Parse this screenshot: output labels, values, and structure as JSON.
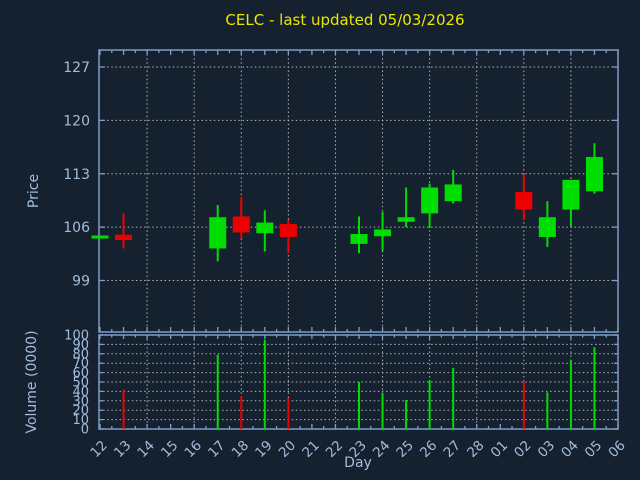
{
  "title": "CELC - last updated 05/03/2026",
  "colors": {
    "background": "#15212f",
    "border": "#7e9ec8",
    "grid": "#aab4be",
    "labels": "#a4bcdc",
    "title": "#e8e800",
    "up": "#00dd00",
    "down": "#ee0000"
  },
  "chart_data": {
    "type": "candlestick+volume",
    "title": "CELC - last updated 05/03/2026",
    "x_axis": {
      "label": "Day",
      "days": [
        "12",
        "13",
        "14",
        "15",
        "16",
        "17",
        "18",
        "19",
        "20",
        "21",
        "22",
        "23",
        "24",
        "25",
        "26",
        "27",
        "28",
        "01",
        "02",
        "03",
        "04",
        "05",
        "06"
      ],
      "grid_every_days": 2,
      "tick_rotation_deg": -45
    },
    "price_axis": {
      "label": "Price",
      "ticks": [
        127,
        120,
        113,
        106,
        99
      ],
      "range": [
        92.2,
        129.2
      ],
      "grid": "dotted"
    },
    "volume_axis": {
      "label": "Volume (0000)",
      "ticks": [
        100,
        90,
        80,
        70,
        60,
        50,
        40,
        30,
        20,
        10,
        0
      ],
      "range": [
        0,
        100
      ],
      "grid": "dotted"
    },
    "legend": "none",
    "candles": [
      {
        "day": "12",
        "open": 104.7,
        "high": 104.7,
        "low": 104.7,
        "close": 104.7,
        "volume": 0
      },
      {
        "day": "13",
        "open": 105.0,
        "high": 107.8,
        "low": 103.2,
        "close": 104.3,
        "volume": 42
      },
      {
        "day": "17",
        "open": 103.2,
        "high": 108.9,
        "low": 101.5,
        "close": 107.3,
        "volume": 79
      },
      {
        "day": "18",
        "open": 107.4,
        "high": 110.0,
        "low": 104.5,
        "close": 105.3,
        "volume": 35
      },
      {
        "day": "19",
        "open": 105.2,
        "high": 108.2,
        "low": 102.8,
        "close": 106.6,
        "volume": 95
      },
      {
        "day": "20",
        "open": 106.4,
        "high": 107.0,
        "low": 102.6,
        "close": 104.7,
        "volume": 33
      },
      {
        "day": "23",
        "open": 103.8,
        "high": 107.4,
        "low": 102.6,
        "close": 105.1,
        "volume": 50
      },
      {
        "day": "24",
        "open": 104.8,
        "high": 108.0,
        "low": 102.9,
        "close": 105.7,
        "volume": 38
      },
      {
        "day": "25",
        "open": 106.7,
        "high": 111.2,
        "low": 106.0,
        "close": 107.3,
        "volume": 31
      },
      {
        "day": "26",
        "open": 107.8,
        "high": 111.7,
        "low": 105.9,
        "close": 111.2,
        "volume": 52
      },
      {
        "day": "27",
        "open": 109.4,
        "high": 113.5,
        "low": 109.1,
        "close": 111.6,
        "volume": 65
      },
      {
        "day": "02",
        "open": 110.6,
        "high": 112.9,
        "low": 106.9,
        "close": 108.3,
        "volume": 50
      },
      {
        "day": "03",
        "open": 104.7,
        "high": 109.4,
        "low": 103.4,
        "close": 107.3,
        "volume": 39
      },
      {
        "day": "04",
        "open": 108.3,
        "high": 112.2,
        "low": 106.1,
        "close": 112.2,
        "volume": 73
      },
      {
        "day": "05",
        "open": 110.7,
        "high": 117.0,
        "low": 110.4,
        "close": 115.2,
        "volume": 87
      }
    ]
  }
}
